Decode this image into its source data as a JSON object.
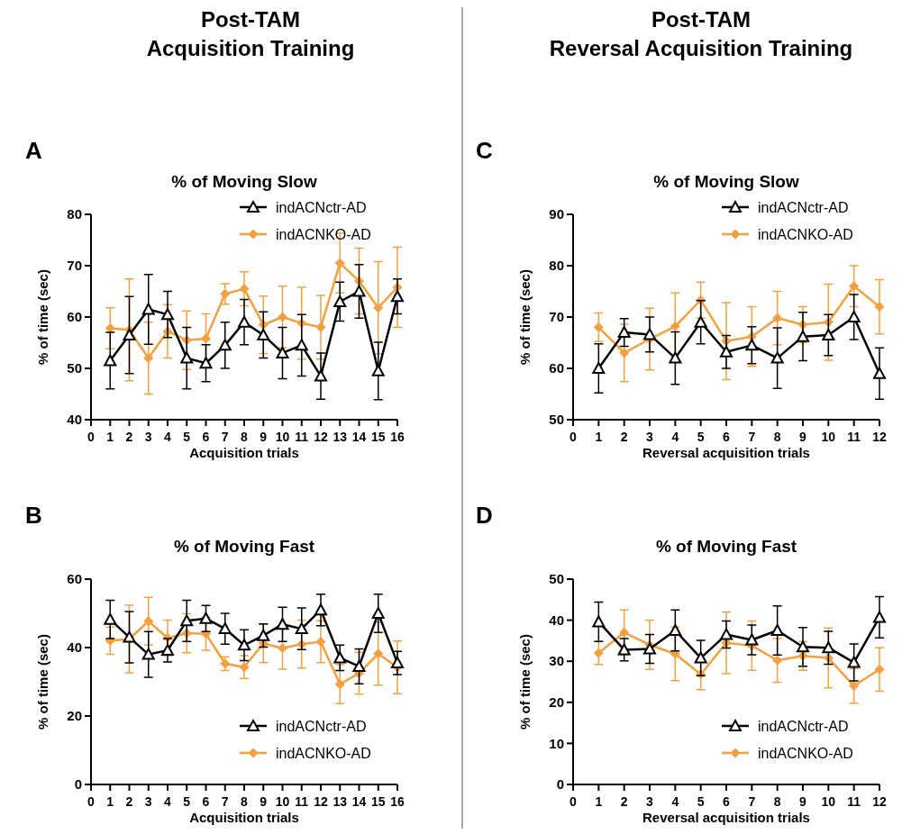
{
  "chart_data": [
    {
      "type": "line",
      "title": "% of Moving Slow",
      "xlabel": "Acquisition trials",
      "ylabel": "% of time (sec)",
      "annotations": [
        "A",
        "Post-TAM",
        "Acquisition Training"
      ],
      "x": [
        1,
        2,
        3,
        4,
        5,
        6,
        7,
        8,
        9,
        10,
        11,
        12,
        13,
        14,
        15,
        16
      ],
      "xlim": [
        0,
        16
      ],
      "xticks": [
        0,
        1,
        2,
        3,
        4,
        5,
        6,
        7,
        8,
        9,
        10,
        11,
        12,
        13,
        14,
        15,
        16
      ],
      "ylim": [
        40,
        80
      ],
      "yticks": [
        40,
        50,
        60,
        70,
        80
      ],
      "legend": "top right",
      "line_style": "solid",
      "series": [
        {
          "name": "indACNctr-AD",
          "color": "#000000",
          "marker": "triangle",
          "values": [
            51.5,
            56.5,
            61.5,
            60.5,
            52,
            51,
            54.5,
            59,
            56.5,
            53,
            54.5,
            48.5,
            63,
            65,
            49.5,
            64
          ],
          "errors": [
            5.5,
            7.5,
            6.8,
            4.5,
            6,
            3.6,
            4.5,
            4.4,
            4.5,
            5,
            6,
            4.5,
            3.8,
            5.2,
            5.6,
            3.4
          ]
        },
        {
          "name": "indACNKO-AD",
          "color": "#f5a03c",
          "marker": "diamond",
          "values": [
            57.8,
            57.5,
            52,
            57.2,
            55.5,
            55.8,
            64.5,
            65.5,
            58.5,
            60,
            58.8,
            58,
            70.5,
            67,
            61.8,
            65.8
          ],
          "errors": [
            4,
            9.9,
            7,
            5.2,
            5.7,
            4.8,
            2,
            3.3,
            5.6,
            6,
            7,
            6.2,
            5.8,
            6.4,
            9,
            7.8
          ]
        }
      ]
    },
    {
      "type": "line",
      "title": "% of Moving Slow",
      "xlabel": "Reversal acquisition trials",
      "ylabel": "% of time (sec)",
      "annotations": [
        "C",
        "Post-TAM",
        "Reversal Acquisition Training"
      ],
      "x": [
        1,
        2,
        3,
        4,
        5,
        6,
        7,
        8,
        9,
        10,
        11,
        12
      ],
      "xlim": [
        0,
        12
      ],
      "xticks": [
        0,
        1,
        2,
        3,
        4,
        5,
        6,
        7,
        8,
        9,
        10,
        11,
        12
      ],
      "ylim": [
        50,
        90
      ],
      "yticks": [
        50,
        60,
        70,
        80,
        90
      ],
      "legend": "top right",
      "line_style": "solid",
      "series": [
        {
          "name": "indACNctr-AD",
          "color": "#000000",
          "marker": "triangle",
          "values": [
            60,
            67,
            66.6,
            62,
            69,
            63.2,
            64.5,
            62,
            66.2,
            66.5,
            70,
            59
          ],
          "errors": [
            4.8,
            2.7,
            3.4,
            5.1,
            4.2,
            3.2,
            3.6,
            5.9,
            4.7,
            4,
            4.4,
            5
          ]
        },
        {
          "name": "indACNKO-AD",
          "color": "#f5a03c",
          "marker": "diamond",
          "values": [
            68,
            63,
            65.7,
            68.2,
            73.3,
            65.3,
            66.2,
            69.8,
            68.5,
            69,
            76,
            72
          ],
          "errors": [
            2.8,
            5.6,
            6,
            6.5,
            3.5,
            7.5,
            5.8,
            5.2,
            3.5,
            7.4,
            4,
            5.3
          ]
        }
      ]
    },
    {
      "type": "line",
      "title": "% of Moving Fast",
      "xlabel": "Acquisition trials",
      "ylabel": "% of time (sec)",
      "annotations": [
        "B"
      ],
      "x": [
        1,
        2,
        3,
        4,
        5,
        6,
        7,
        8,
        9,
        10,
        11,
        12,
        13,
        14,
        15,
        16
      ],
      "xlim": [
        0,
        16
      ],
      "xticks": [
        0,
        1,
        2,
        3,
        4,
        5,
        6,
        7,
        8,
        9,
        10,
        11,
        12,
        13,
        14,
        15,
        16
      ],
      "ylim": [
        0,
        60
      ],
      "yticks": [
        0,
        20,
        40,
        60
      ],
      "legend": "bottom right",
      "line_style": "solid",
      "series": [
        {
          "name": "indACNctr-AD",
          "color": "#000000",
          "marker": "triangle",
          "values": [
            48.2,
            43,
            38,
            39.2,
            47.8,
            48.5,
            45.5,
            40.7,
            43.5,
            46.8,
            45.5,
            51,
            37,
            34.5,
            50,
            35.5
          ],
          "errors": [
            5.6,
            7.5,
            6.7,
            3.4,
            6,
            3.8,
            4.5,
            4.5,
            3.4,
            5,
            6.1,
            4.6,
            3.7,
            5.1,
            5.6,
            3.4
          ]
        },
        {
          "name": "indACNKO-AD",
          "color": "#f5a03c",
          "marker": "diamond",
          "values": [
            42,
            42.5,
            47.7,
            42.8,
            44.2,
            44,
            35.3,
            34.3,
            41.2,
            39.8,
            41,
            41.7,
            29.3,
            32.5,
            38.2,
            34.2
          ],
          "errors": [
            4,
            9.9,
            7,
            5.2,
            5.7,
            4.8,
            2,
            3.3,
            5.6,
            6.1,
            7,
            6.1,
            5.7,
            6.1,
            9.2,
            7.7
          ]
        }
      ]
    },
    {
      "type": "line",
      "title": "% of Moving Fast",
      "xlabel": "Reversal acquisition trials",
      "ylabel": "% of time (sec)",
      "annotations": [
        "D"
      ],
      "x": [
        1,
        2,
        3,
        4,
        5,
        6,
        7,
        8,
        9,
        10,
        11,
        12
      ],
      "xlim": [
        0,
        12
      ],
      "xticks": [
        0,
        1,
        2,
        3,
        4,
        5,
        6,
        7,
        8,
        9,
        10,
        11,
        12
      ],
      "ylim": [
        0,
        50
      ],
      "yticks": [
        0,
        10,
        20,
        30,
        40,
        50
      ],
      "legend": "bottom right",
      "line_style": "solid",
      "series": [
        {
          "name": "indACNctr-AD",
          "color": "#000000",
          "marker": "triangle",
          "values": [
            39.6,
            32.8,
            33,
            37.5,
            30.8,
            36.5,
            35.2,
            37.5,
            33.5,
            33.3,
            29.7,
            40.7
          ],
          "errors": [
            4.8,
            2.7,
            3.5,
            5,
            4.3,
            3.3,
            3.6,
            6,
            4.7,
            4,
            4.5,
            5
          ]
        },
        {
          "name": "indACNKO-AD",
          "color": "#f5a03c",
          "marker": "diamond",
          "values": [
            32,
            37,
            34,
            31.8,
            26.8,
            34.5,
            33.8,
            30.2,
            31.3,
            30.8,
            24,
            28
          ],
          "errors": [
            2.8,
            5.5,
            6,
            6.5,
            3.7,
            7.5,
            6,
            5.3,
            3.5,
            7.3,
            4.2,
            5.3
          ]
        }
      ]
    }
  ]
}
